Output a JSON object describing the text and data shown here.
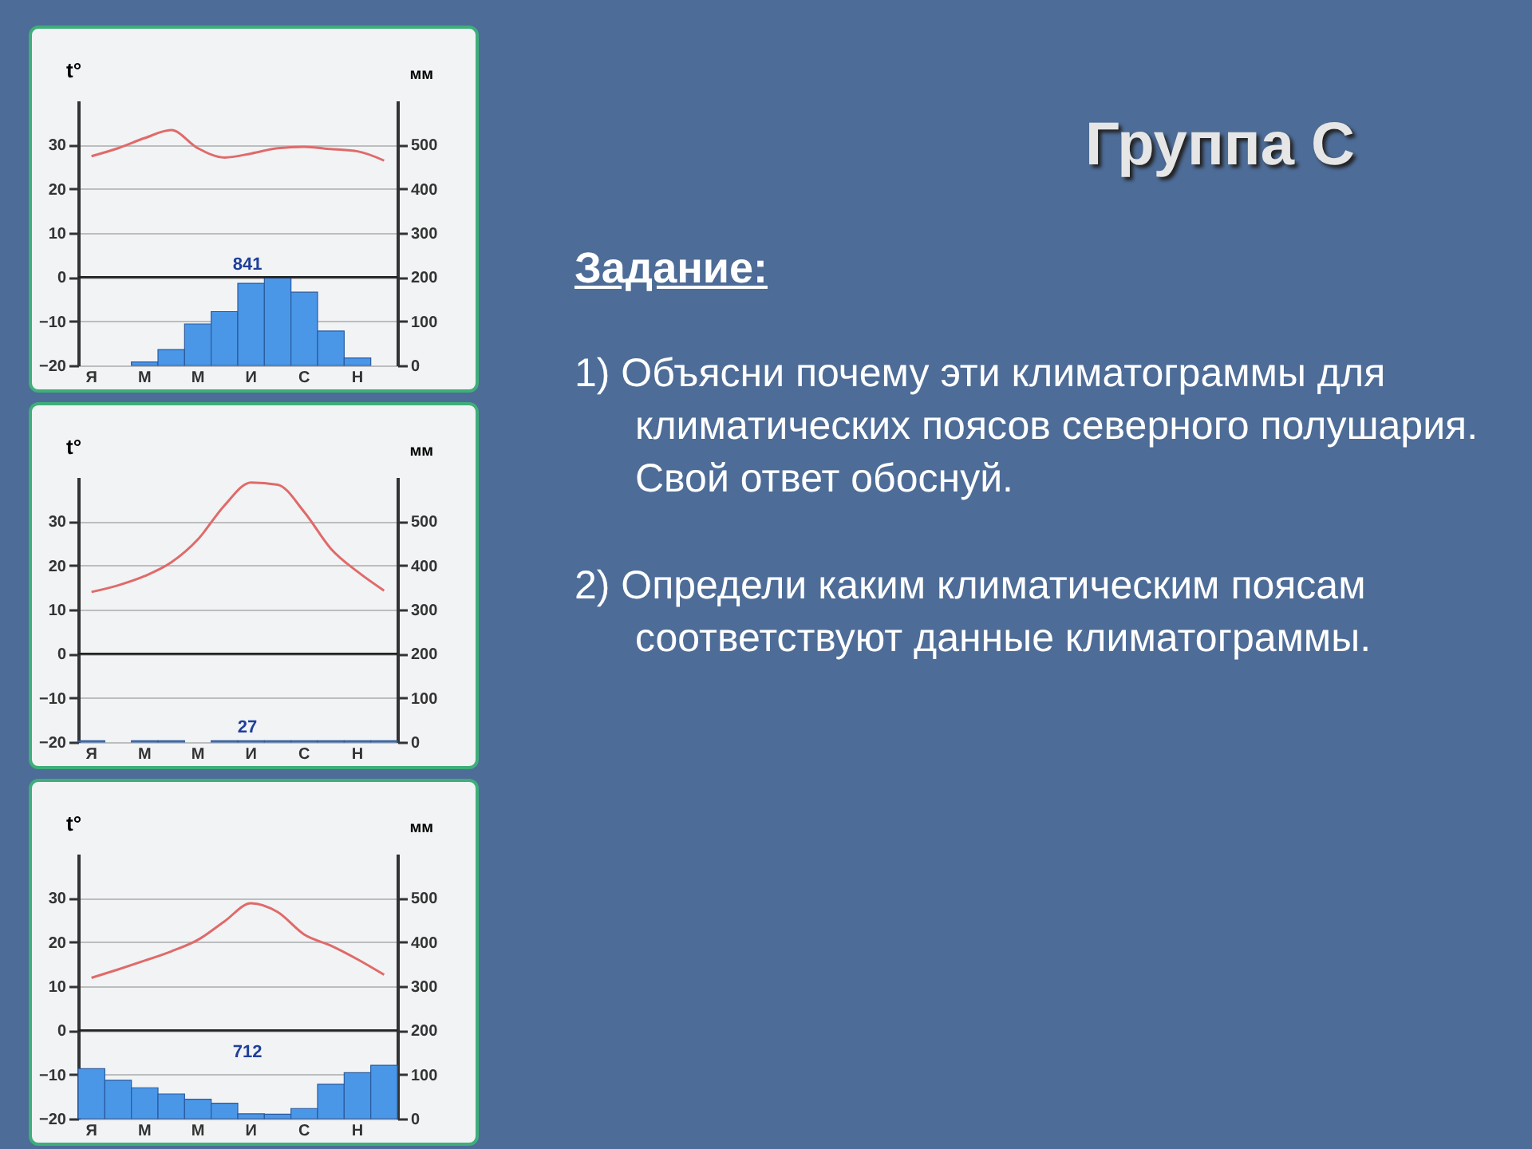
{
  "chart_data": [
    {
      "type": "bar",
      "ylabel": "t°",
      "y2label": "мм",
      "categories": [
        "Я",
        null,
        "М",
        null,
        "М",
        null,
        "И",
        null,
        "С",
        null,
        "Н",
        null
      ],
      "ylim": [
        -20,
        40
      ],
      "yticks": [
        -20,
        -10,
        0,
        10,
        20,
        30
      ],
      "y2lim": [
        0,
        600
      ],
      "y2ticks": [
        0,
        100,
        200,
        300,
        400,
        500
      ],
      "grid": "y",
      "ref_lines": [
        {
          "axis": "y",
          "value": 0,
          "color": "#222222"
        }
      ],
      "annotations": [
        "841"
      ],
      "series": [
        {
          "type": "bar",
          "axis": "y2",
          "color": "#4a97e8",
          "values": [
            null,
            null,
            8,
            36,
            94,
            122,
            186,
            199,
            166,
            78,
            17,
            null
          ]
        },
        {
          "type": "line",
          "color": "#e06a6a",
          "values": [
            27.4,
            29.2,
            31.5,
            33.3,
            29.2,
            27.1,
            28,
            29.2,
            29.5,
            29,
            28.5,
            26.4
          ]
        }
      ]
    },
    {
      "type": "bar",
      "ylabel": "t°",
      "y2label": "мм",
      "categories": [
        "Я",
        null,
        "М",
        null,
        "М",
        null,
        "И",
        null,
        "С",
        null,
        "Н",
        null
      ],
      "ylim": [
        -20,
        40
      ],
      "yticks": [
        -20,
        -10,
        0,
        10,
        20,
        30
      ],
      "y2lim": [
        0,
        600
      ],
      "y2ticks": [
        0,
        100,
        200,
        300,
        400,
        500
      ],
      "grid": "y",
      "ref_lines": [
        {
          "axis": "y",
          "value": 0,
          "color": "#222222"
        }
      ],
      "annotations": [
        "27"
      ],
      "series": [
        {
          "type": "bar",
          "axis": "y2",
          "color": "#5a80a8",
          "values": [
            3,
            null,
            3,
            3,
            null,
            3,
            3,
            3,
            3,
            3,
            3,
            3
          ]
        },
        {
          "type": "line",
          "color": "#e06a6a",
          "values": [
            14,
            15.5,
            17.6,
            20.7,
            25.9,
            33.6,
            38.8,
            38.3,
            32.1,
            23.8,
            18.6,
            14.3
          ]
        }
      ]
    },
    {
      "type": "bar",
      "ylabel": "t°",
      "y2label": "мм",
      "categories": [
        "Я",
        null,
        "М",
        null,
        "М",
        null,
        "И",
        null,
        "С",
        null,
        "Н",
        null
      ],
      "ylim": [
        -20,
        40
      ],
      "yticks": [
        -20,
        -10,
        0,
        10,
        20,
        30
      ],
      "y2lim": [
        0,
        600
      ],
      "y2ticks": [
        0,
        100,
        200,
        300,
        400,
        500
      ],
      "grid": "y",
      "ref_lines": [
        {
          "axis": "y",
          "value": 0,
          "color": "#222222"
        }
      ],
      "annotations": [
        "712"
      ],
      "series": [
        {
          "type": "bar",
          "axis": "y2",
          "color": "#4a97e8",
          "values": [
            113,
            87,
            70,
            56,
            44,
            35,
            11,
            10,
            23,
            78,
            104,
            121
          ]
        },
        {
          "type": "line",
          "color": "#e06a6a",
          "values": [
            11.9,
            13.8,
            15.8,
            17.9,
            20.5,
            24.7,
            28.8,
            26.8,
            21.7,
            19.2,
            16.1,
            12.6
          ]
        }
      ]
    },
    {
      "type": "other",
      "title": "Группа С",
      "annotations": [
        "Задание:",
        "1) Объясни почему эти климатограммы для климатических поясов северного полушария.        Свой ответ обоснуй.",
        "2) Определи каким климатическим поясам соответствуют данные климатограммы."
      ]
    }
  ]
}
